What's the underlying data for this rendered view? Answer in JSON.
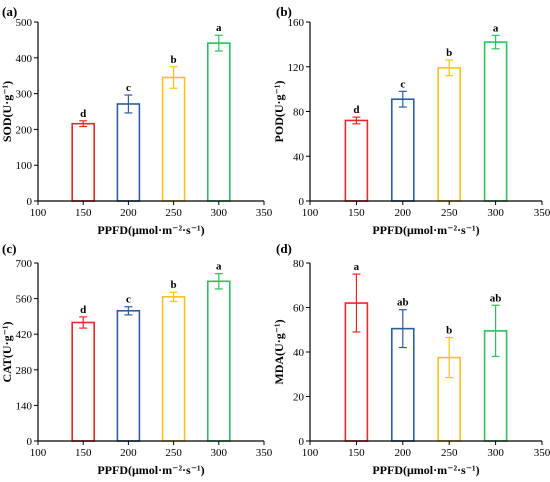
{
  "chart_data": [
    {
      "panel": "(a)",
      "type": "bar",
      "xlabel": "PPFD(μmol·m⁻²·s⁻¹)",
      "ylabel": "SOD(U·g⁻¹)",
      "x": [
        150,
        200,
        250,
        300
      ],
      "values": [
        216,
        271,
        345,
        441
      ],
      "errors": [
        8,
        25,
        30,
        22
      ],
      "letters": [
        "d",
        "c",
        "b",
        "a"
      ],
      "xlim": [
        100,
        350
      ],
      "xticks": [
        100,
        150,
        200,
        250,
        300,
        350
      ],
      "ylim": [
        0,
        500
      ],
      "yticks": [
        0,
        100,
        200,
        300,
        400,
        500
      ],
      "colors": [
        "#e8272a",
        "#2e5e9c",
        "#f7c31a",
        "#2fbe5e"
      ]
    },
    {
      "panel": "(b)",
      "type": "bar",
      "xlabel": "PPFD(μmol·m⁻²·s⁻¹)",
      "ylabel": "POD(U·g⁻¹)",
      "x": [
        150,
        200,
        250,
        300
      ],
      "values": [
        72,
        91,
        119,
        142
      ],
      "errors": [
        3,
        7,
        7,
        6
      ],
      "letters": [
        "d",
        "c",
        "b",
        "a"
      ],
      "xlim": [
        100,
        350
      ],
      "xticks": [
        100,
        150,
        200,
        250,
        300,
        350
      ],
      "ylim": [
        0,
        160
      ],
      "yticks": [
        0,
        40,
        80,
        120,
        160
      ],
      "colors": [
        "#e8272a",
        "#2e5e9c",
        "#f7c31a",
        "#2fbe5e"
      ]
    },
    {
      "panel": "(c)",
      "type": "bar",
      "xlabel": "PPFD(μmol·m⁻²·s⁻¹)",
      "ylabel": "CAT(U·g⁻¹)",
      "x": [
        150,
        200,
        250,
        300
      ],
      "values": [
        466,
        512,
        567,
        628
      ],
      "errors": [
        22,
        16,
        18,
        30
      ],
      "letters": [
        "d",
        "c",
        "b",
        "a"
      ],
      "xlim": [
        100,
        350
      ],
      "xticks": [
        100,
        150,
        200,
        250,
        300,
        350
      ],
      "ylim": [
        0,
        700
      ],
      "yticks": [
        0,
        140,
        280,
        420,
        560,
        700
      ],
      "colors": [
        "#e8272a",
        "#2e5e9c",
        "#f7c31a",
        "#2fbe5e"
      ]
    },
    {
      "panel": "(d)",
      "type": "bar",
      "xlabel": "PPFD(μmol·m⁻²·s⁻¹)",
      "ylabel": "MDA(U·g⁻¹)",
      "x": [
        150,
        200,
        250,
        300
      ],
      "values": [
        62,
        50.5,
        37.5,
        49.5
      ],
      "errors": [
        13,
        8.5,
        9,
        11.5
      ],
      "letters": [
        "a",
        "ab",
        "b",
        "ab"
      ],
      "xlim": [
        100,
        350
      ],
      "xticks": [
        100,
        150,
        200,
        250,
        300,
        350
      ],
      "ylim": [
        0,
        80
      ],
      "yticks": [
        0,
        20,
        40,
        60,
        80
      ],
      "colors": [
        "#e8272a",
        "#2e5e9c",
        "#f7c31a",
        "#2fbe5e"
      ]
    }
  ]
}
